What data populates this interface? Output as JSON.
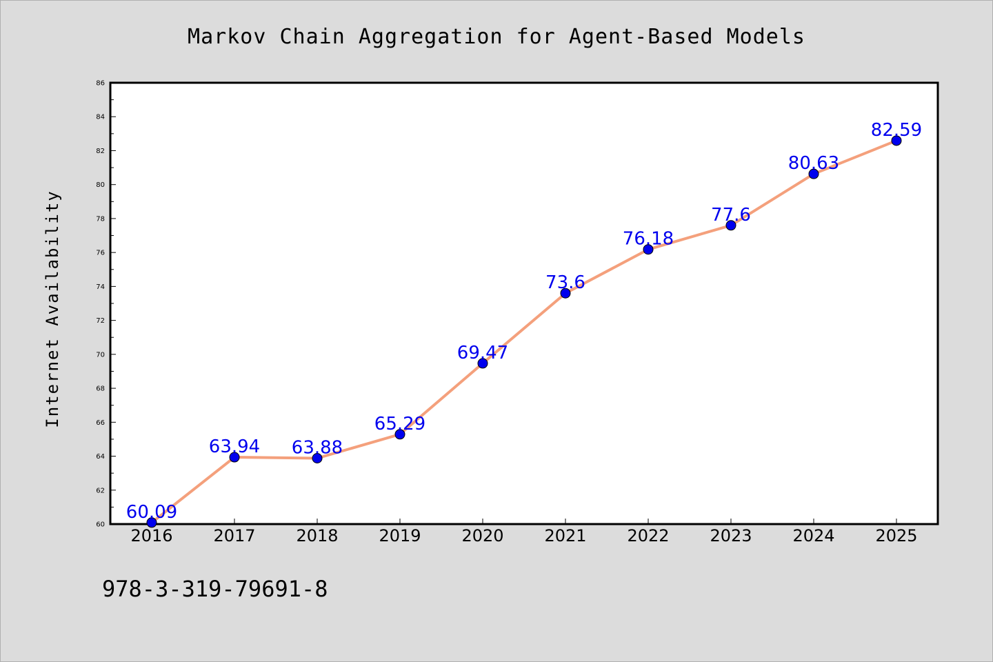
{
  "chart_data": {
    "type": "line",
    "title": "Markov Chain Aggregation for Agent-Based Models",
    "xlabel": "",
    "ylabel": "Internet Availability",
    "categories": [
      "2016",
      "2017",
      "2018",
      "2019",
      "2020",
      "2021",
      "2022",
      "2023",
      "2024",
      "2025"
    ],
    "series": [
      {
        "values": [
          60.09,
          63.94,
          63.88,
          65.29,
          69.47,
          73.6,
          76.18,
          77.6,
          80.63,
          82.59
        ],
        "labels": [
          "60.09",
          "63.94",
          "63.88",
          "65.29",
          "69.47",
          "73.6",
          "76.18",
          "77.6",
          "80.63",
          "82.59"
        ],
        "line_color": "#f4a07c",
        "marker_color": "#0000ee",
        "label_color": "#0000ee"
      }
    ],
    "ylim": [
      60,
      86
    ],
    "yticks": [
      "60",
      "62",
      "64",
      "66",
      "68",
      "70",
      "72",
      "74",
      "76",
      "78",
      "80",
      "82",
      "84",
      "86"
    ],
    "grid": false,
    "legend": "none"
  },
  "footnote": "978-3-319-79691-8",
  "colors": {
    "background": "#dcdcdc",
    "plot_background": "#ffffff"
  }
}
